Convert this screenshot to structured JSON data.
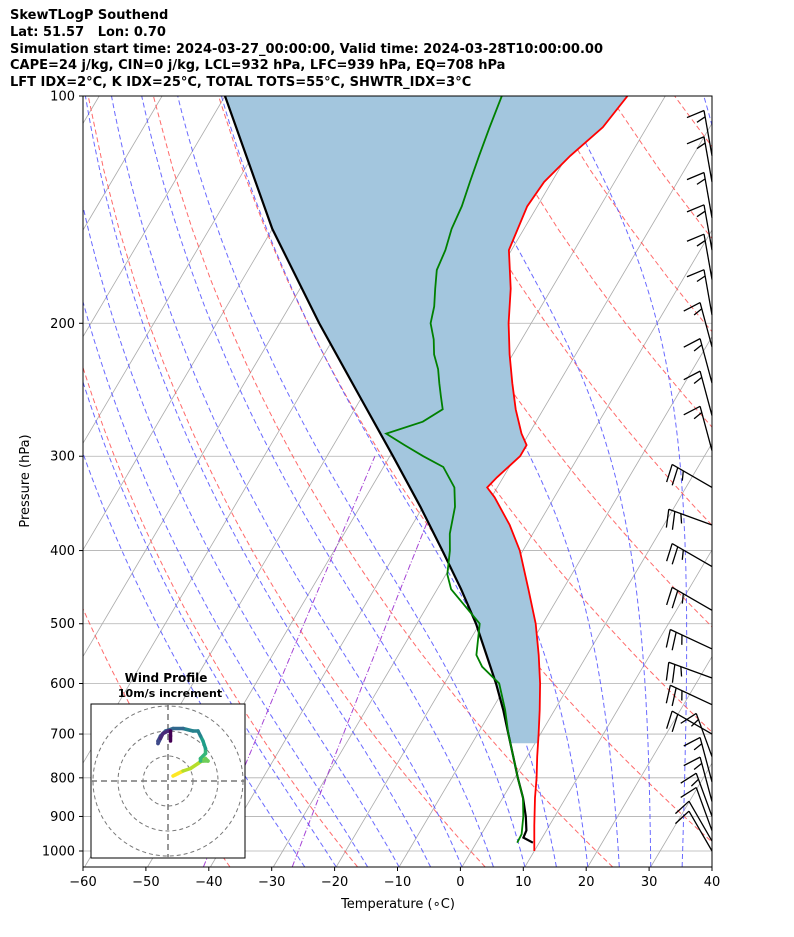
{
  "header": {
    "lines": [
      "SkewTLogP Southend",
      "Lat: 51.57   Lon: 0.70",
      "Simulation start time: 2024-03-27_00:00:00, Valid time: 2024-03-28T10:00:00.00",
      "CAPE=24 j/kg, CIN=0 j/kg, LCL=932 hPa, LFC=939 hPa, EQ=708 hPa",
      "LFT IDX=2°C, K IDX=25°C, TOTAL TOTS=55°C, SHWTR_IDX=3°C"
    ]
  },
  "colors": {
    "temperature": "#ff0000",
    "dewpoint": "#008000",
    "parcel": "#000000",
    "cape_fill": "#a3c6de",
    "dry_adiabat": "#ff5050",
    "moist_adiabat": "#5050ff",
    "mixing_ratio": "#9b30d0",
    "isotherm": "#aaaaaa",
    "grid": "#b0b0b0"
  },
  "chart_data": {
    "type": "line",
    "title": "",
    "xlabel": "Temperature (∘C)",
    "ylabel": "Pressure (hPa)",
    "xlim": [
      -60,
      40
    ],
    "ylim": [
      1050,
      100
    ],
    "y_scale": "log",
    "skew": true,
    "grid": true,
    "x_ticks": [
      "−60",
      "−50",
      "−40",
      "−30",
      "−20",
      "−10",
      "0",
      "10",
      "20",
      "30",
      "40"
    ],
    "y_ticks": [
      {
        "p": 100,
        "label": "100"
      },
      {
        "p": 200,
        "label": "200"
      },
      {
        "p": 300,
        "label": "300"
      },
      {
        "p": 400,
        "label": "400"
      },
      {
        "p": 500,
        "label": "500"
      },
      {
        "p": 600,
        "label": "600"
      },
      {
        "p": 700,
        "label": "700"
      },
      {
        "p": 800,
        "label": "800"
      },
      {
        "p": 900,
        "label": "900"
      },
      {
        "p": 1000,
        "label": "1000"
      }
    ],
    "series": [
      {
        "key": "temperature",
        "p": [
          1000,
          925,
          850,
          800,
          750,
          700,
          650,
          600,
          550,
          500,
          450,
          400,
          370,
          340,
          330,
          320,
          300,
          290,
          280,
          260,
          240,
          220,
          200,
          180,
          160,
          140,
          130,
          120,
          110,
          100
        ],
        "T": [
          10,
          7.6,
          5.1,
          3.5,
          1.6,
          -0.3,
          -2.4,
          -4.8,
          -7.7,
          -11.1,
          -15.5,
          -20.5,
          -24.5,
          -29.5,
          -31.6,
          -31.0,
          -29.3,
          -29.3,
          -31.2,
          -34.4,
          -37.4,
          -40.5,
          -43.6,
          -46.5,
          -50.4,
          -51.6,
          -51.2,
          -49.5,
          -47.0,
          -46.0
        ]
      },
      {
        "key": "dewpoint",
        "p": [
          975,
          950,
          900,
          850,
          800,
          750,
          700,
          650,
          600,
          570,
          550,
          500,
          450,
          430,
          400,
          380,
          350,
          330,
          310,
          300,
          290,
          280,
          270,
          260,
          250,
          240,
          230,
          220,
          210,
          200,
          190,
          180,
          170,
          160,
          150,
          140,
          130,
          120,
          110,
          100
        ],
        "T": [
          6.5,
          6.4,
          5.0,
          3.2,
          0.5,
          -2.2,
          -5.1,
          -7.9,
          -11.3,
          -15.6,
          -17.6,
          -20.0,
          -27.8,
          -29.8,
          -31.6,
          -33.2,
          -34.9,
          -36.8,
          -40.5,
          -44.7,
          -48.7,
          -52.7,
          -48.0,
          -46.0,
          -47.5,
          -49.0,
          -50.5,
          -52.5,
          -54.0,
          -56.0,
          -57.0,
          -58.5,
          -60.0,
          -60.5,
          -61.5,
          -62.0,
          -63.0,
          -64.0,
          -65.0,
          -66.0
        ]
      },
      {
        "key": "parcel",
        "p": [
          975,
          960,
          939,
          900,
          850,
          800,
          750,
          700,
          650,
          600,
          550,
          500,
          450,
          400,
          350,
          300,
          250,
          200,
          150,
          100
        ],
        "T": [
          9.0,
          7.0,
          6.8,
          5.4,
          3.2,
          0.5,
          -2.2,
          -5.1,
          -8.2,
          -11.8,
          -16.0,
          -20.6,
          -26.2,
          -32.8,
          -40.4,
          -49.5,
          -60.4,
          -73.7,
          -90.0,
          -110.0
        ]
      }
    ],
    "annotations": {
      "inset_title": "Wind Profile",
      "inset_subtitle": "10m/s increment"
    },
    "wind_barbs": [
      {
        "p": 1000,
        "speed_kt": 10,
        "dir_deg": 330
      },
      {
        "p": 970,
        "speed_kt": 10,
        "dir_deg": 330
      },
      {
        "p": 940,
        "speed_kt": 10,
        "dir_deg": 340
      },
      {
        "p": 900,
        "speed_kt": 15,
        "dir_deg": 340
      },
      {
        "p": 860,
        "speed_kt": 15,
        "dir_deg": 345
      },
      {
        "p": 810,
        "speed_kt": 15,
        "dir_deg": 345
      },
      {
        "p": 750,
        "speed_kt": 15,
        "dir_deg": 340
      },
      {
        "p": 700,
        "speed_kt": 20,
        "dir_deg": 300
      },
      {
        "p": 640,
        "speed_kt": 25,
        "dir_deg": 295
      },
      {
        "p": 590,
        "speed_kt": 25,
        "dir_deg": 290
      },
      {
        "p": 540,
        "speed_kt": 25,
        "dir_deg": 295
      },
      {
        "p": 480,
        "speed_kt": 25,
        "dir_deg": 300
      },
      {
        "p": 420,
        "speed_kt": 25,
        "dir_deg": 300
      },
      {
        "p": 370,
        "speed_kt": 25,
        "dir_deg": 290
      },
      {
        "p": 330,
        "speed_kt": 25,
        "dir_deg": 300
      },
      {
        "p": 295,
        "speed_kt": 15,
        "dir_deg": 345
      },
      {
        "p": 265,
        "speed_kt": 15,
        "dir_deg": 345
      },
      {
        "p": 240,
        "speed_kt": 15,
        "dir_deg": 345
      },
      {
        "p": 215,
        "speed_kt": 15,
        "dir_deg": 345
      },
      {
        "p": 195,
        "speed_kt": 15,
        "dir_deg": 350
      },
      {
        "p": 175,
        "speed_kt": 15,
        "dir_deg": 350
      },
      {
        "p": 160,
        "speed_kt": 15,
        "dir_deg": 350
      },
      {
        "p": 145,
        "speed_kt": 15,
        "dir_deg": 350
      },
      {
        "p": 130,
        "speed_kt": 15,
        "dir_deg": 350
      },
      {
        "p": 120,
        "speed_kt": 15,
        "dir_deg": 350
      }
    ],
    "hodograph": {
      "ring_speed_ms": [
        10,
        20,
        30
      ],
      "points": [
        [
          2,
          2
        ],
        [
          3,
          2.5
        ],
        [
          4,
          3
        ],
        [
          6,
          4
        ],
        [
          9,
          5
        ],
        [
          12,
          7
        ],
        [
          15,
          9
        ],
        [
          16,
          8
        ],
        [
          14,
          8
        ],
        [
          13,
          8
        ],
        [
          13,
          9
        ],
        [
          15,
          11
        ],
        [
          15,
          13
        ],
        [
          14,
          16
        ],
        [
          13,
          18
        ],
        [
          12,
          20
        ],
        [
          10,
          20
        ],
        [
          6,
          21
        ],
        [
          2,
          21
        ],
        [
          -1,
          20
        ],
        [
          -3,
          18
        ],
        [
          -4,
          16
        ],
        [
          -4,
          15
        ],
        [
          -3,
          17
        ],
        [
          -2,
          19
        ],
        [
          0,
          20
        ],
        [
          1,
          20
        ],
        [
          1,
          18
        ],
        [
          1,
          16
        ]
      ]
    }
  }
}
